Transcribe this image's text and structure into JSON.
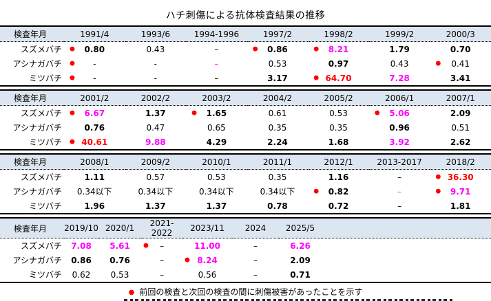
{
  "chart_data": {
    "type": "table",
    "title": "ハチ刺傷による抗体検査結果の推移",
    "header_label": "検査年月",
    "row_labels": [
      "スズメバチ",
      "アシナガバチ",
      "ミツバチ"
    ],
    "legend_marker": "●",
    "legend_note": "前回の検査と次回の検査の間に刺傷被害があったことを示す",
    "colors": {
      "sting_marker": "#ff0000",
      "high_value": "#ff0000",
      "elevated_value": "#ff00ff",
      "header_bg": "#dce6f1",
      "text": "#000000"
    },
    "sections": [
      {
        "columns": [
          "1991/4",
          "1993/6",
          "1994-1996",
          "1997/2",
          "1998/2",
          "1999/2",
          "2000/3"
        ],
        "rows": [
          {
            "label": "スズメバチ",
            "cells": [
              {
                "v": "0.80",
                "bold": true,
                "dot": true
              },
              {
                "v": "0.43"
              },
              {
                "v": "–"
              },
              {
                "v": "0.86",
                "bold": true,
                "dot": true
              },
              {
                "v": "8.21",
                "bold": true,
                "color": "magenta",
                "dot": true
              },
              {
                "v": "1.79",
                "bold": true
              },
              {
                "v": "0.70",
                "bold": true
              }
            ]
          },
          {
            "label": "アシナガバチ",
            "cells": [
              {
                "v": "-",
                "dot": true
              },
              {
                "v": "-"
              },
              {
                "v": "–",
                "color": "magenta"
              },
              {
                "v": "0.53"
              },
              {
                "v": "0.97",
                "bold": true
              },
              {
                "v": "0.43"
              },
              {
                "v": "0.41",
                "dot": true
              }
            ]
          },
          {
            "label": "ミツバチ",
            "cells": [
              {
                "v": "-",
                "dot": true
              },
              {
                "v": "-"
              },
              {
                "v": "–"
              },
              {
                "v": "3.17",
                "bold": true
              },
              {
                "v": "64.70",
                "bold": true,
                "color": "red",
                "dot": true
              },
              {
                "v": "7.28",
                "bold": true,
                "color": "magenta"
              },
              {
                "v": "3.41",
                "bold": true
              }
            ]
          }
        ]
      },
      {
        "columns": [
          "2001/2",
          "2002/2",
          "2003/2",
          "2004/2",
          "2005/2",
          "2006/1",
          "2007/1"
        ],
        "rows": [
          {
            "label": "スズメバチ",
            "cells": [
              {
                "v": "6.67",
                "bold": true,
                "color": "magenta",
                "dot": true
              },
              {
                "v": "1.37",
                "bold": true
              },
              {
                "v": "1.65",
                "bold": true,
                "dot": true
              },
              {
                "v": "0.61"
              },
              {
                "v": "0.53"
              },
              {
                "v": "5.06",
                "bold": true,
                "color": "magenta",
                "dot": true
              },
              {
                "v": "2.09",
                "bold": true
              }
            ]
          },
          {
            "label": "アシナガバチ",
            "cells": [
              {
                "v": "0.76",
                "bold": true
              },
              {
                "v": "0.47"
              },
              {
                "v": "0.65"
              },
              {
                "v": "0.35"
              },
              {
                "v": "0.35"
              },
              {
                "v": "0.96",
                "bold": true
              },
              {
                "v": "0.51"
              }
            ]
          },
          {
            "label": "ミツバチ",
            "cells": [
              {
                "v": "40.61",
                "bold": true,
                "color": "red",
                "dot": true
              },
              {
                "v": "9.88",
                "bold": true,
                "color": "magenta"
              },
              {
                "v": "4.29",
                "bold": true
              },
              {
                "v": "2.24",
                "bold": true
              },
              {
                "v": "1.68",
                "bold": true
              },
              {
                "v": "3.92",
                "bold": true,
                "color": "magenta"
              },
              {
                "v": "2.62",
                "bold": true
              }
            ]
          }
        ]
      },
      {
        "columns": [
          "2008/1",
          "2009/2",
          "2010/1",
          "2011/1",
          "2012/1",
          "2013-2017",
          "2018/2"
        ],
        "rows": [
          {
            "label": "スズメバチ",
            "cells": [
              {
                "v": "1.11",
                "bold": true
              },
              {
                "v": "0.57"
              },
              {
                "v": "0.53"
              },
              {
                "v": "0.35"
              },
              {
                "v": "1.16",
                "bold": true
              },
              {
                "v": "–"
              },
              {
                "v": "36.30",
                "bold": true,
                "color": "red",
                "dot": true
              }
            ]
          },
          {
            "label": "アシナガバチ",
            "cells": [
              {
                "v": "0.34以下"
              },
              {
                "v": "0.34以下"
              },
              {
                "v": "0.34以下"
              },
              {
                "v": "0.34以下"
              },
              {
                "v": "0.82",
                "bold": true,
                "dot": true
              },
              {
                "v": "–",
                "color": "magenta"
              },
              {
                "v": "9.71",
                "bold": true,
                "color": "magenta",
                "dot": true
              }
            ]
          },
          {
            "label": "ミツバチ",
            "cells": [
              {
                "v": "1.96",
                "bold": true
              },
              {
                "v": "1.37",
                "bold": true
              },
              {
                "v": "1.37",
                "bold": true
              },
              {
                "v": "0.78",
                "bold": true
              },
              {
                "v": "0.72",
                "bold": true
              },
              {
                "v": "–"
              },
              {
                "v": "1.81",
                "bold": true
              }
            ]
          }
        ]
      },
      {
        "columns": [
          "2019/10",
          "2020/1",
          "2021-2022",
          "2023/11",
          "2024",
          "2025/5"
        ],
        "rows": [
          {
            "label": "スズメバチ",
            "cells": [
              {
                "v": "7.08",
                "bold": true,
                "color": "magenta"
              },
              {
                "v": "5.61",
                "bold": true,
                "color": "magenta"
              },
              {
                "v": "–",
                "dot": true
              },
              {
                "v": "11.00",
                "bold": true,
                "color": "magenta"
              },
              {
                "v": "–"
              },
              {
                "v": "6.26",
                "bold": true,
                "color": "magenta"
              }
            ]
          },
          {
            "label": "アシナガバチ",
            "cells": [
              {
                "v": "0.86",
                "bold": true
              },
              {
                "v": "0.76",
                "bold": true
              },
              {
                "v": "–"
              },
              {
                "v": "8.24",
                "bold": true,
                "color": "magenta",
                "dot": true
              },
              {
                "v": "–"
              },
              {
                "v": "2.09",
                "bold": true
              }
            ]
          },
          {
            "label": "ミツバチ",
            "cells": [
              {
                "v": "0.62"
              },
              {
                "v": "0.53"
              },
              {
                "v": "–"
              },
              {
                "v": "0.56"
              },
              {
                "v": "–"
              },
              {
                "v": "0.71",
                "bold": true
              }
            ]
          }
        ]
      }
    ]
  }
}
